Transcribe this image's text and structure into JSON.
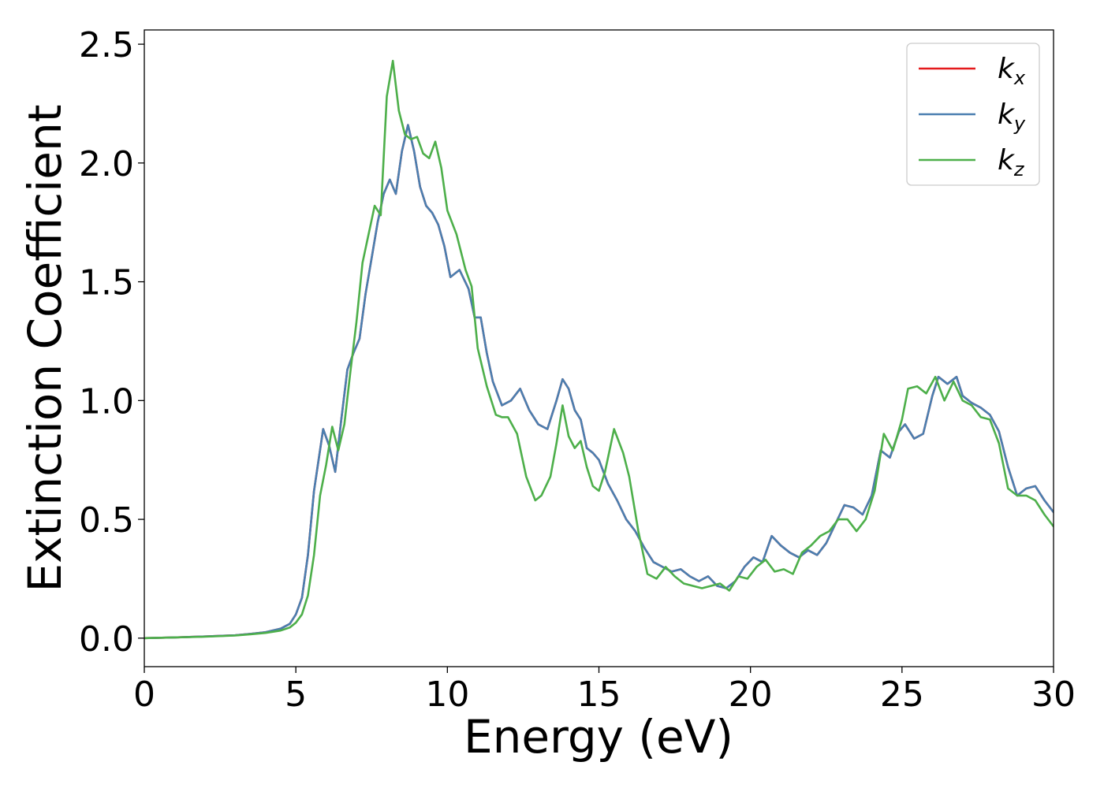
{
  "chart_data": {
    "type": "line",
    "title": "",
    "xlabel": "Energy (eV)",
    "ylabel": "Extinction Coefficient",
    "xlim": [
      0,
      30
    ],
    "ylim": [
      -0.12,
      2.56
    ],
    "xticks": [
      0,
      5,
      10,
      15,
      20,
      25,
      30
    ],
    "yticks": [
      0.0,
      0.5,
      1.0,
      1.5,
      2.0,
      2.5
    ],
    "ytick_labels": [
      "0.0",
      "0.5",
      "1.0",
      "1.5",
      "2.0",
      "2.5"
    ],
    "grid": false,
    "legend_position": "top-right",
    "series": [
      {
        "name": "k",
        "sub": "x",
        "color": "#e41a1c",
        "x": [
          0,
          1,
          2,
          3,
          3.5,
          4,
          4.5,
          4.8,
          5.0,
          5.2,
          5.4,
          5.6,
          5.9,
          6.1,
          6.3,
          6.5,
          6.7,
          6.9,
          7.1,
          7.3,
          7.5,
          7.7,
          7.9,
          8.1,
          8.3,
          8.5,
          8.7,
          8.9,
          9.1,
          9.3,
          9.5,
          9.7,
          9.9,
          10.1,
          10.4,
          10.7,
          10.9,
          11.1,
          11.3,
          11.5,
          11.8,
          12.1,
          12.4,
          12.7,
          13.0,
          13.3,
          13.6,
          13.8,
          14.0,
          14.2,
          14.4,
          14.6,
          14.8,
          15.0,
          15.3,
          15.6,
          15.9,
          16.2,
          16.5,
          16.8,
          17.1,
          17.4,
          17.7,
          18.0,
          18.3,
          18.6,
          18.9,
          19.2,
          19.5,
          19.8,
          20.1,
          20.4,
          20.7,
          21.0,
          21.3,
          21.6,
          21.9,
          22.2,
          22.5,
          22.8,
          23.1,
          23.4,
          23.7,
          24.0,
          24.3,
          24.6,
          24.9,
          25.1,
          25.4,
          25.7,
          26.0,
          26.2,
          26.5,
          26.8,
          27.0,
          27.3,
          27.6,
          27.9,
          28.2,
          28.5,
          28.8,
          29.1,
          29.4,
          29.7,
          30.0
        ],
        "y": [
          0,
          0.003,
          0.007,
          0.012,
          0.018,
          0.025,
          0.04,
          0.06,
          0.1,
          0.17,
          0.35,
          0.62,
          0.88,
          0.81,
          0.7,
          0.92,
          1.13,
          1.2,
          1.26,
          1.45,
          1.6,
          1.75,
          1.87,
          1.93,
          1.87,
          2.05,
          2.16,
          2.05,
          1.9,
          1.82,
          1.79,
          1.74,
          1.65,
          1.52,
          1.55,
          1.47,
          1.35,
          1.35,
          1.2,
          1.08,
          0.98,
          1.0,
          1.05,
          0.96,
          0.9,
          0.88,
          1.0,
          1.09,
          1.05,
          0.96,
          0.92,
          0.8,
          0.78,
          0.75,
          0.65,
          0.58,
          0.5,
          0.45,
          0.38,
          0.32,
          0.3,
          0.28,
          0.29,
          0.26,
          0.24,
          0.26,
          0.22,
          0.21,
          0.24,
          0.3,
          0.34,
          0.32,
          0.43,
          0.39,
          0.36,
          0.34,
          0.37,
          0.35,
          0.4,
          0.48,
          0.56,
          0.55,
          0.52,
          0.6,
          0.79,
          0.76,
          0.87,
          0.9,
          0.84,
          0.86,
          1.02,
          1.1,
          1.07,
          1.1,
          1.02,
          0.99,
          0.97,
          0.94,
          0.87,
          0.72,
          0.6,
          0.63,
          0.64,
          0.58,
          0.53
        ]
      },
      {
        "name": "k",
        "sub": "y",
        "color": "#4a7fb0",
        "x": [
          0,
          1,
          2,
          3,
          3.5,
          4,
          4.5,
          4.8,
          5.0,
          5.2,
          5.4,
          5.6,
          5.9,
          6.1,
          6.3,
          6.5,
          6.7,
          6.9,
          7.1,
          7.3,
          7.5,
          7.7,
          7.9,
          8.1,
          8.3,
          8.5,
          8.7,
          8.9,
          9.1,
          9.3,
          9.5,
          9.7,
          9.9,
          10.1,
          10.4,
          10.7,
          10.9,
          11.1,
          11.3,
          11.5,
          11.8,
          12.1,
          12.4,
          12.7,
          13.0,
          13.3,
          13.6,
          13.8,
          14.0,
          14.2,
          14.4,
          14.6,
          14.8,
          15.0,
          15.3,
          15.6,
          15.9,
          16.2,
          16.5,
          16.8,
          17.1,
          17.4,
          17.7,
          18.0,
          18.3,
          18.6,
          18.9,
          19.2,
          19.5,
          19.8,
          20.1,
          20.4,
          20.7,
          21.0,
          21.3,
          21.6,
          21.9,
          22.2,
          22.5,
          22.8,
          23.1,
          23.4,
          23.7,
          24.0,
          24.3,
          24.6,
          24.9,
          25.1,
          25.4,
          25.7,
          26.0,
          26.2,
          26.5,
          26.8,
          27.0,
          27.3,
          27.6,
          27.9,
          28.2,
          28.5,
          28.8,
          29.1,
          29.4,
          29.7,
          30.0
        ],
        "y": [
          0,
          0.003,
          0.007,
          0.012,
          0.018,
          0.025,
          0.04,
          0.06,
          0.1,
          0.17,
          0.35,
          0.62,
          0.88,
          0.81,
          0.7,
          0.92,
          1.13,
          1.2,
          1.26,
          1.45,
          1.6,
          1.75,
          1.87,
          1.93,
          1.87,
          2.05,
          2.16,
          2.05,
          1.9,
          1.82,
          1.79,
          1.74,
          1.65,
          1.52,
          1.55,
          1.47,
          1.35,
          1.35,
          1.2,
          1.08,
          0.98,
          1.0,
          1.05,
          0.96,
          0.9,
          0.88,
          1.0,
          1.09,
          1.05,
          0.96,
          0.92,
          0.8,
          0.78,
          0.75,
          0.65,
          0.58,
          0.5,
          0.45,
          0.38,
          0.32,
          0.3,
          0.28,
          0.29,
          0.26,
          0.24,
          0.26,
          0.22,
          0.21,
          0.24,
          0.3,
          0.34,
          0.32,
          0.43,
          0.39,
          0.36,
          0.34,
          0.37,
          0.35,
          0.4,
          0.48,
          0.56,
          0.55,
          0.52,
          0.6,
          0.79,
          0.76,
          0.87,
          0.9,
          0.84,
          0.86,
          1.02,
          1.1,
          1.07,
          1.1,
          1.02,
          0.99,
          0.97,
          0.94,
          0.87,
          0.72,
          0.6,
          0.63,
          0.64,
          0.58,
          0.53
        ]
      },
      {
        "name": "k",
        "sub": "z",
        "color": "#4daf4a",
        "x": [
          0,
          1,
          2,
          3,
          3.5,
          4,
          4.5,
          4.8,
          5.0,
          5.2,
          5.4,
          5.6,
          5.8,
          6.0,
          6.2,
          6.4,
          6.6,
          6.8,
          7.0,
          7.2,
          7.4,
          7.6,
          7.8,
          8.0,
          8.2,
          8.4,
          8.6,
          8.8,
          9.0,
          9.2,
          9.4,
          9.6,
          9.8,
          10.0,
          10.3,
          10.6,
          10.8,
          11.0,
          11.3,
          11.6,
          11.8,
          12.0,
          12.3,
          12.6,
          12.9,
          13.1,
          13.4,
          13.6,
          13.8,
          14.0,
          14.2,
          14.4,
          14.6,
          14.8,
          15.0,
          15.2,
          15.5,
          15.8,
          16.0,
          16.3,
          16.6,
          16.9,
          17.2,
          17.5,
          17.8,
          18.1,
          18.4,
          18.7,
          19.0,
          19.3,
          19.6,
          19.9,
          20.2,
          20.5,
          20.8,
          21.1,
          21.4,
          21.7,
          22.0,
          22.3,
          22.6,
          22.9,
          23.2,
          23.5,
          23.8,
          24.1,
          24.4,
          24.7,
          25.0,
          25.2,
          25.5,
          25.8,
          26.1,
          26.4,
          26.7,
          27.0,
          27.3,
          27.6,
          27.9,
          28.2,
          28.5,
          28.8,
          29.1,
          29.4,
          29.7,
          30.0
        ],
        "y": [
          0,
          0.003,
          0.006,
          0.011,
          0.016,
          0.022,
          0.032,
          0.045,
          0.065,
          0.1,
          0.18,
          0.35,
          0.6,
          0.73,
          0.89,
          0.79,
          0.9,
          1.12,
          1.33,
          1.58,
          1.7,
          1.82,
          1.78,
          2.28,
          2.43,
          2.22,
          2.12,
          2.1,
          2.11,
          2.04,
          2.02,
          2.09,
          1.98,
          1.8,
          1.7,
          1.55,
          1.48,
          1.22,
          1.06,
          0.94,
          0.93,
          0.93,
          0.86,
          0.68,
          0.58,
          0.6,
          0.68,
          0.82,
          0.98,
          0.85,
          0.8,
          0.83,
          0.72,
          0.64,
          0.62,
          0.7,
          0.88,
          0.78,
          0.68,
          0.45,
          0.27,
          0.25,
          0.3,
          0.26,
          0.23,
          0.22,
          0.21,
          0.22,
          0.23,
          0.2,
          0.26,
          0.25,
          0.3,
          0.33,
          0.28,
          0.29,
          0.27,
          0.36,
          0.39,
          0.43,
          0.45,
          0.5,
          0.5,
          0.45,
          0.5,
          0.62,
          0.86,
          0.79,
          0.92,
          1.05,
          1.06,
          1.03,
          1.1,
          1.0,
          1.08,
          1.0,
          0.98,
          0.93,
          0.92,
          0.82,
          0.63,
          0.6,
          0.6,
          0.58,
          0.52,
          0.47
        ]
      }
    ]
  }
}
